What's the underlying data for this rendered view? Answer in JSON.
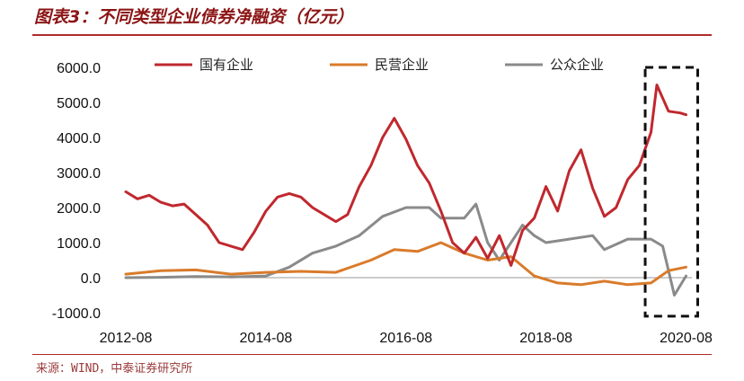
{
  "title": "图表3：不同类型企业债券净融资（亿元）",
  "source": "来源：WIND，中泰证券研究所",
  "chart_data": {
    "type": "line",
    "title": "图表3：不同类型企业债券净融资（亿元）",
    "xlabel": "",
    "ylabel": "",
    "ylim": [
      -1000,
      6000
    ],
    "yticks": [
      -1000,
      0,
      1000,
      2000,
      3000,
      4000,
      5000,
      6000
    ],
    "ytick_labels": [
      "-1000.0",
      "0.0",
      "1000.0",
      "2000.0",
      "3000.0",
      "4000.0",
      "5000.0",
      "6000.0"
    ],
    "xticks": [
      "2012-08",
      "2014-08",
      "2016-08",
      "2018-08",
      "2020-08"
    ],
    "grid": false,
    "legend_position": "top",
    "highlight_box": {
      "from": "2020-01",
      "to": "2020-10",
      "y_from": -1100,
      "y_to": 6000
    },
    "series": [
      {
        "name": "国有企业",
        "color": "#c0282e",
        "points": [
          [
            "2012-08",
            2450
          ],
          [
            "2012-10",
            2250
          ],
          [
            "2012-12",
            2350
          ],
          [
            "2013-02",
            2150
          ],
          [
            "2013-04",
            2050
          ],
          [
            "2013-06",
            2100
          ],
          [
            "2013-08",
            1800
          ],
          [
            "2013-10",
            1500
          ],
          [
            "2013-12",
            1000
          ],
          [
            "2014-02",
            900
          ],
          [
            "2014-04",
            800
          ],
          [
            "2014-06",
            1300
          ],
          [
            "2014-08",
            1900
          ],
          [
            "2014-10",
            2300
          ],
          [
            "2014-12",
            2400
          ],
          [
            "2015-02",
            2300
          ],
          [
            "2015-04",
            2000
          ],
          [
            "2015-06",
            1800
          ],
          [
            "2015-08",
            1600
          ],
          [
            "2015-10",
            1800
          ],
          [
            "2015-12",
            2600
          ],
          [
            "2016-02",
            3200
          ],
          [
            "2016-04",
            4000
          ],
          [
            "2016-06",
            4550
          ],
          [
            "2016-08",
            3950
          ],
          [
            "2016-10",
            3200
          ],
          [
            "2016-12",
            2700
          ],
          [
            "2017-02",
            1900
          ],
          [
            "2017-04",
            1000
          ],
          [
            "2017-06",
            700
          ],
          [
            "2017-08",
            1150
          ],
          [
            "2017-10",
            550
          ],
          [
            "2017-12",
            1200
          ],
          [
            "2018-02",
            350
          ],
          [
            "2018-04",
            1350
          ],
          [
            "2018-06",
            1700
          ],
          [
            "2018-08",
            2600
          ],
          [
            "2018-10",
            1900
          ],
          [
            "2018-12",
            3050
          ],
          [
            "2019-02",
            3650
          ],
          [
            "2019-04",
            2550
          ],
          [
            "2019-06",
            1750
          ],
          [
            "2019-08",
            2000
          ],
          [
            "2019-10",
            2800
          ],
          [
            "2019-12",
            3200
          ],
          [
            "2020-02",
            4150
          ],
          [
            "2020-03",
            5500
          ],
          [
            "2020-05",
            4750
          ],
          [
            "2020-07",
            4700
          ],
          [
            "2020-08",
            4650
          ]
        ]
      },
      {
        "name": "民营企业",
        "color": "#d97b2b",
        "points": [
          [
            "2012-08",
            100
          ],
          [
            "2013-02",
            200
          ],
          [
            "2013-08",
            220
          ],
          [
            "2014-02",
            100
          ],
          [
            "2014-08",
            150
          ],
          [
            "2015-02",
            180
          ],
          [
            "2015-08",
            150
          ],
          [
            "2016-02",
            500
          ],
          [
            "2016-06",
            800
          ],
          [
            "2016-10",
            750
          ],
          [
            "2017-02",
            1000
          ],
          [
            "2017-06",
            700
          ],
          [
            "2017-10",
            500
          ],
          [
            "2018-02",
            600
          ],
          [
            "2018-06",
            50
          ],
          [
            "2018-10",
            -150
          ],
          [
            "2019-02",
            -200
          ],
          [
            "2019-06",
            -100
          ],
          [
            "2019-10",
            -200
          ],
          [
            "2020-02",
            -150
          ],
          [
            "2020-05",
            200
          ],
          [
            "2020-08",
            300
          ]
        ]
      },
      {
        "name": "公众企业",
        "color": "#8a8a8a",
        "points": [
          [
            "2012-08",
            0
          ],
          [
            "2013-02",
            10
          ],
          [
            "2013-08",
            30
          ],
          [
            "2014-02",
            20
          ],
          [
            "2014-08",
            50
          ],
          [
            "2014-12",
            300
          ],
          [
            "2015-04",
            700
          ],
          [
            "2015-08",
            900
          ],
          [
            "2015-12",
            1200
          ],
          [
            "2016-04",
            1750
          ],
          [
            "2016-08",
            2000
          ],
          [
            "2016-12",
            2000
          ],
          [
            "2017-02",
            1700
          ],
          [
            "2017-06",
            1700
          ],
          [
            "2017-08",
            2100
          ],
          [
            "2017-10",
            1000
          ],
          [
            "2017-12",
            500
          ],
          [
            "2018-02",
            1000
          ],
          [
            "2018-04",
            1500
          ],
          [
            "2018-06",
            1200
          ],
          [
            "2018-08",
            1000
          ],
          [
            "2018-12",
            1100
          ],
          [
            "2019-04",
            1200
          ],
          [
            "2019-06",
            800
          ],
          [
            "2019-10",
            1100
          ],
          [
            "2020-02",
            1100
          ],
          [
            "2020-04",
            900
          ],
          [
            "2020-06",
            -500
          ],
          [
            "2020-08",
            50
          ]
        ]
      }
    ]
  }
}
